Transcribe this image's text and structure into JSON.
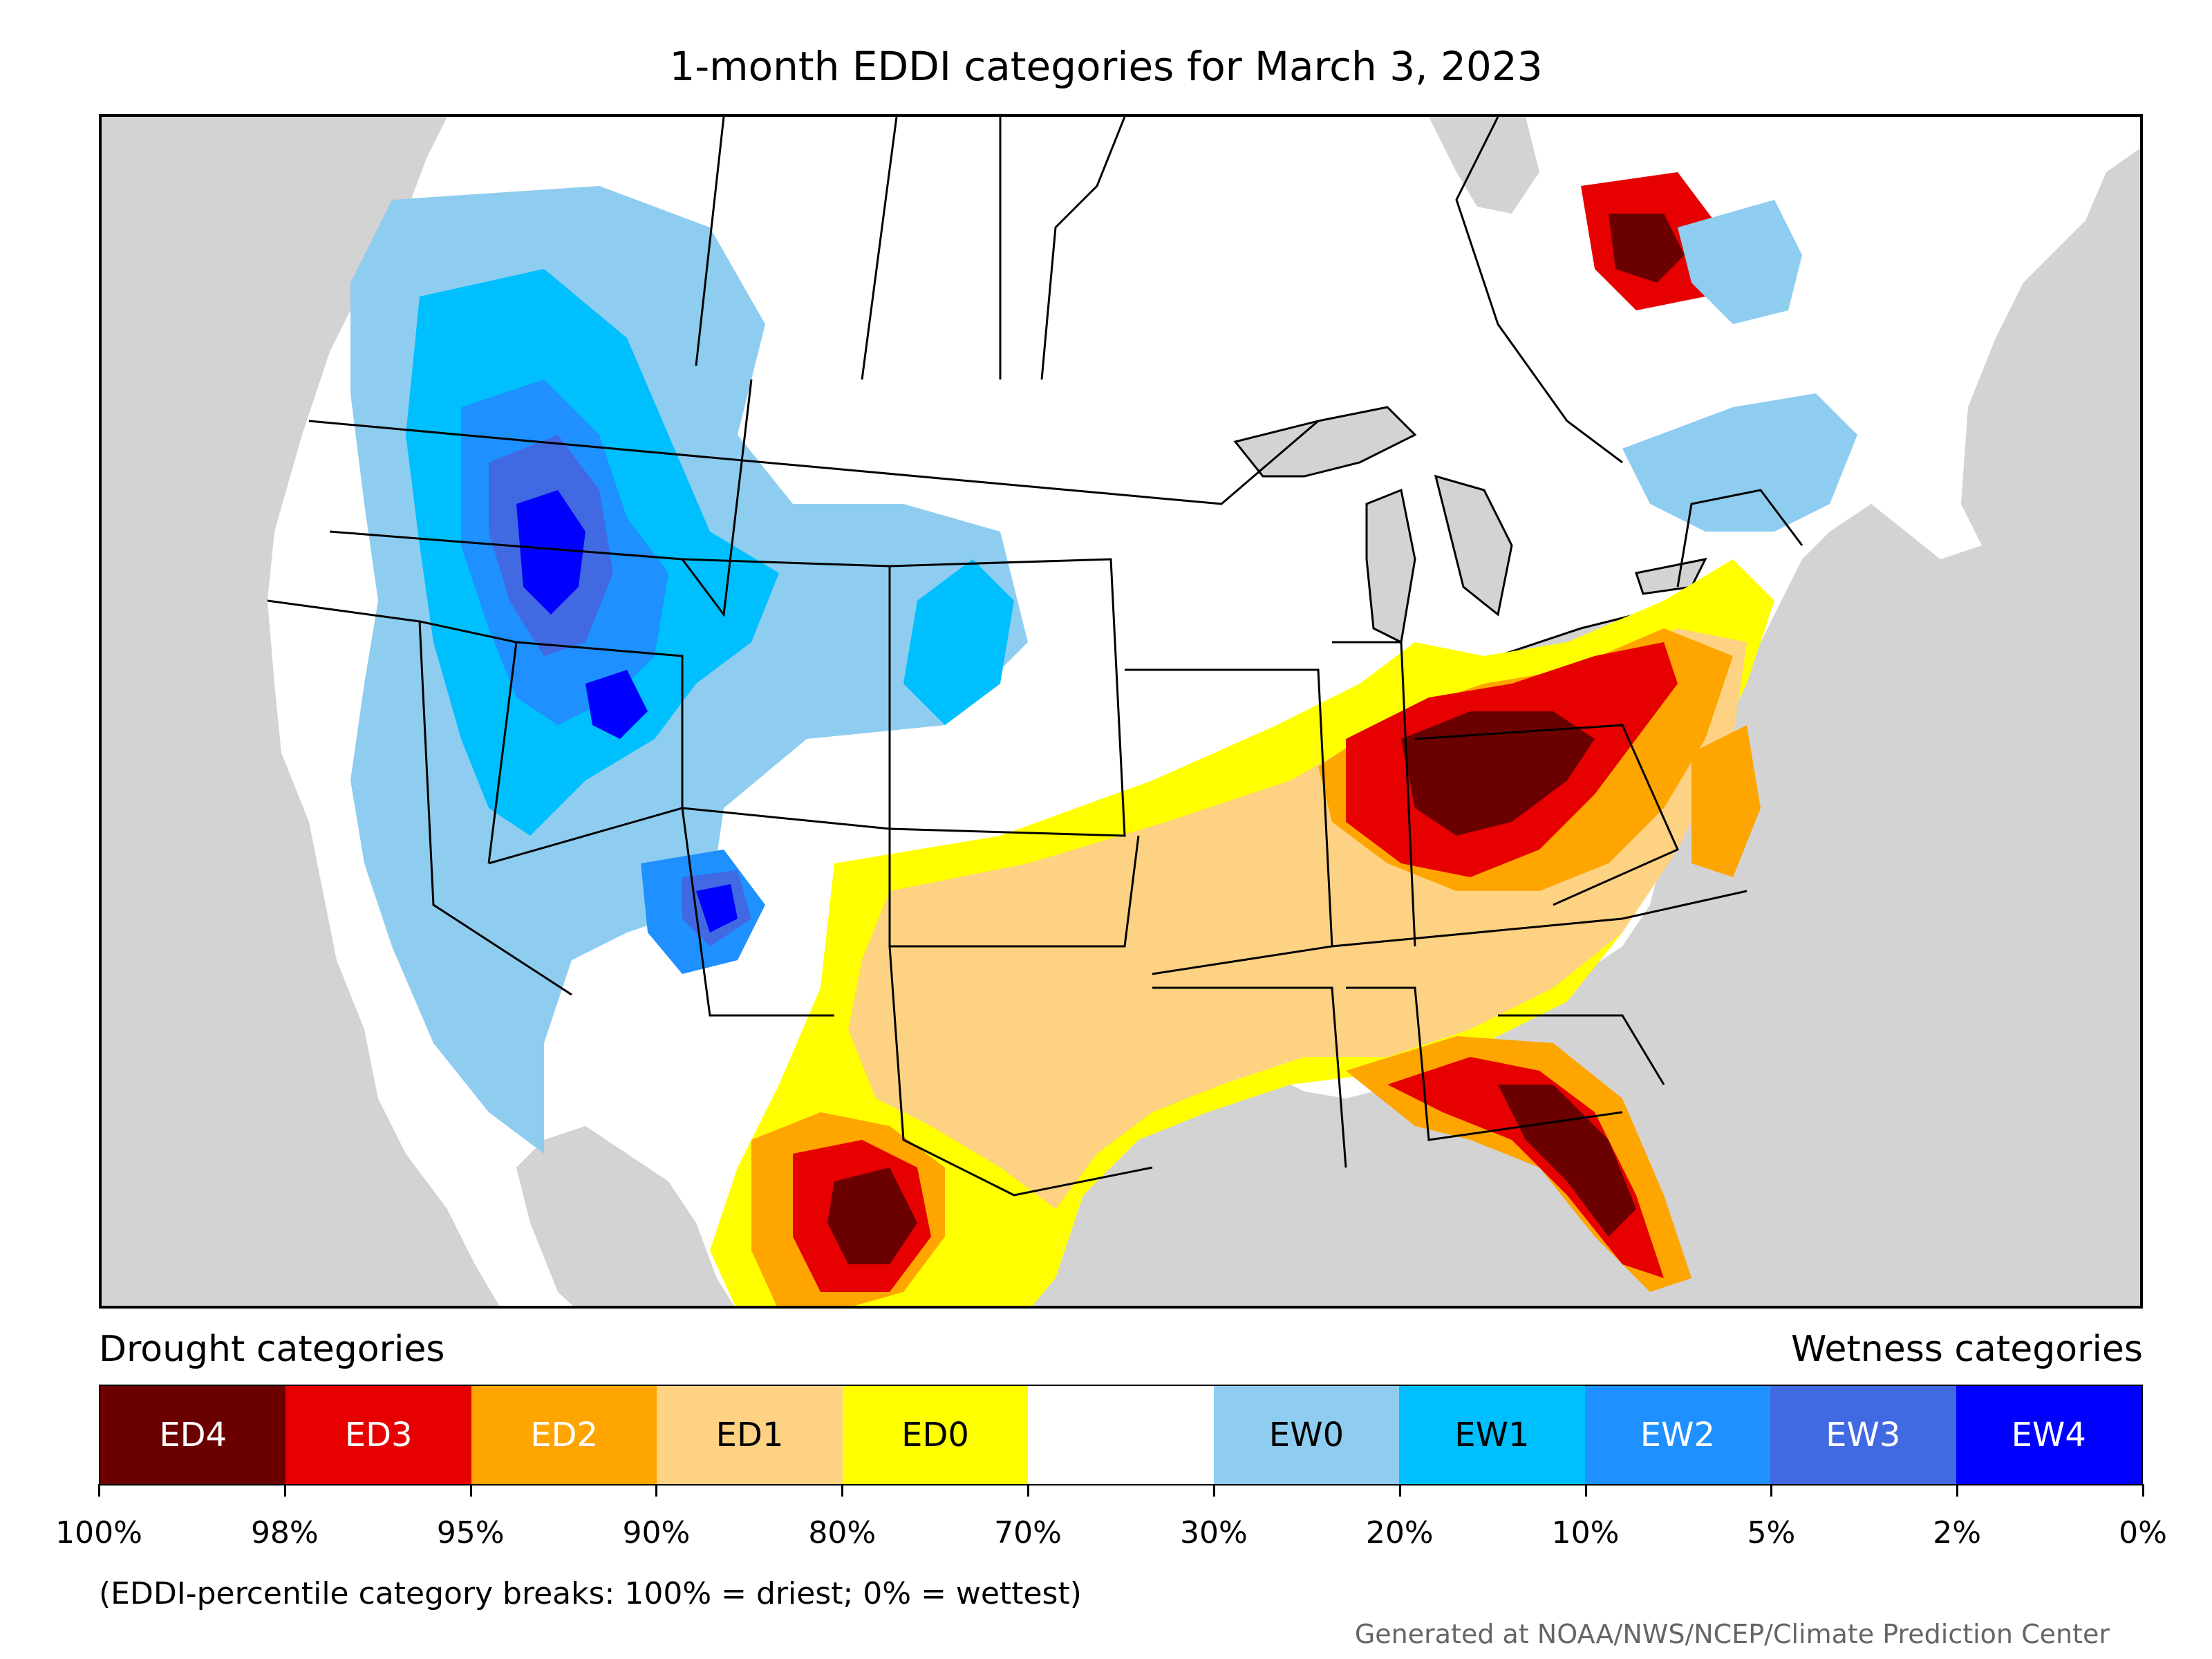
{
  "title": "1-month EDDI categories for March 3, 2023",
  "legend": {
    "drought_header": "Drought categories",
    "wetness_header": "Wetness categories",
    "categories": [
      {
        "label": "ED4",
        "color": "#6b0000",
        "text_color": "#ffffff"
      },
      {
        "label": "ED3",
        "color": "#e60000",
        "text_color": "#ffffff"
      },
      {
        "label": "ED2",
        "color": "#ffa500",
        "text_color": "#ffffff"
      },
      {
        "label": "ED1",
        "color": "#fdd283",
        "text_color": "#000000"
      },
      {
        "label": "ED0",
        "color": "#ffff00",
        "text_color": "#000000"
      },
      {
        "label": "",
        "color": "#ffffff",
        "text_color": "#000000"
      },
      {
        "label": "EW0",
        "color": "#8ecdf0",
        "text_color": "#000000"
      },
      {
        "label": "EW1",
        "color": "#00bfff",
        "text_color": "#000000"
      },
      {
        "label": "EW2",
        "color": "#1e90ff",
        "text_color": "#ffffff"
      },
      {
        "label": "EW3",
        "color": "#4169e1",
        "text_color": "#ffffff"
      },
      {
        "label": "EW4",
        "color": "#0000ff",
        "text_color": "#ffffff"
      }
    ],
    "breaks": [
      "100%",
      "98%",
      "95%",
      "90%",
      "80%",
      "70%",
      "30%",
      "20%",
      "10%",
      "5%",
      "2%",
      "0%"
    ]
  },
  "note": "(EDDI-percentile category breaks: 100% = driest; 0% = wettest)",
  "credit": "Generated at NOAA/NWS/NCEP/Climate Prediction Center",
  "map_colors": {
    "background": "#d3d3d3",
    "land": "#ffffff",
    "borders": "#000000"
  }
}
